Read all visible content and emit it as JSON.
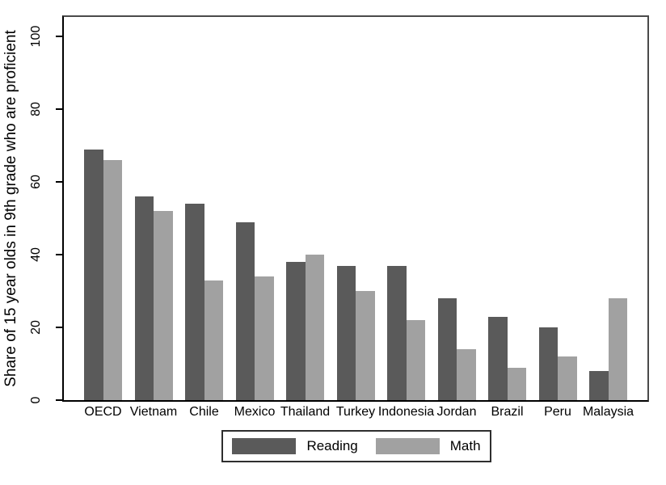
{
  "chart_data": {
    "type": "bar",
    "title": "",
    "ylabel": "Share of 15 year olds in 9th grade who are proficient",
    "xlabel": "",
    "categories": [
      "OECD",
      "Vietnam",
      "Chile",
      "Mexico",
      "Thailand",
      "Turkey",
      "Indonesia",
      "Jordan",
      "Brazil",
      "Peru",
      "Malaysia"
    ],
    "series": [
      {
        "name": "Reading",
        "color": "#5a5a5a",
        "values": [
          69,
          56,
          54,
          49,
          38,
          37,
          37,
          28,
          23,
          20,
          8
        ]
      },
      {
        "name": "Math",
        "color": "#a1a1a1",
        "values": [
          66,
          52,
          33,
          34,
          40,
          30,
          22,
          14,
          9,
          12,
          28
        ]
      }
    ],
    "yticks": [
      0,
      20,
      40,
      60,
      80,
      100
    ],
    "ylim": [
      0,
      106
    ],
    "grid": "off",
    "legend_position": "bottom-center",
    "axis_color": "#000000",
    "plot_border_color": "#4a4a4a",
    "background_color": "#ffffff"
  }
}
